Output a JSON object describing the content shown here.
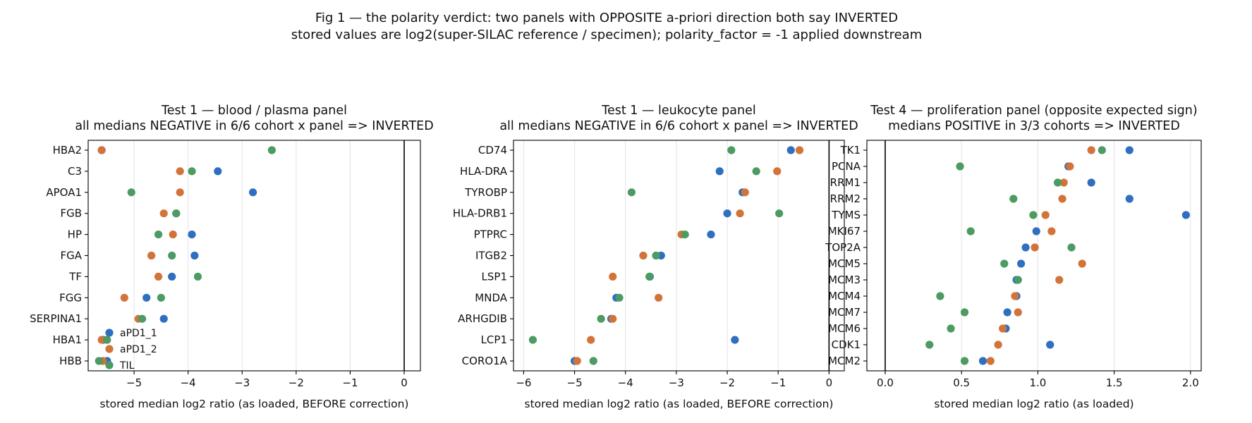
{
  "title_line1": "Fig 1 — the polarity verdict: two panels with OPPOSITE a-priori direction both say INVERTED",
  "title_line2": "stored values are log2(super-SILAC reference / specimen); polarity_factor = -1 applied downstream",
  "colors": {
    "aPD1_1": "#2f6fbf",
    "aPD1_2": "#d2743a",
    "TIL": "#4c9b63"
  },
  "chart_data": [
    {
      "type": "scatter",
      "title_line1": "Test 1 — blood / plasma panel",
      "title_line2": "all medians NEGATIVE in 6/6 cohort x panel  =>  INVERTED",
      "xlabel": "stored median log2 ratio (as loaded, BEFORE correction)",
      "xlim": [
        -5.85,
        0.3
      ],
      "xticks": [
        -5,
        -4,
        -3,
        -2,
        -1,
        0
      ],
      "xtick_labels": [
        "−5",
        "−4",
        "−3",
        "−2",
        "−1",
        "0"
      ],
      "grid": true,
      "legend": {
        "placement": "lower-left",
        "entries": [
          "aPD1_1",
          "aPD1_2",
          "TIL"
        ]
      },
      "categories": [
        "HBA2",
        "C3",
        "APOA1",
        "FGB",
        "HP",
        "FGA",
        "TF",
        "FGG",
        "SERPINA1",
        "HBA1",
        "HBB"
      ],
      "series": [
        {
          "name": "aPD1_1",
          "values": [
            -5.6,
            -3.45,
            -2.8,
            -4.22,
            -3.93,
            -3.88,
            -4.3,
            -4.77,
            -4.45,
            -5.57,
            -5.5
          ]
        },
        {
          "name": "aPD1_2",
          "values": [
            -5.6,
            -4.15,
            -4.15,
            -4.45,
            -4.28,
            -4.68,
            -4.55,
            -5.18,
            -4.92,
            -5.6,
            -5.58
          ]
        },
        {
          "name": "TIL",
          "values": [
            -2.45,
            -3.93,
            -5.05,
            -4.22,
            -4.55,
            -4.3,
            -3.82,
            -4.5,
            -4.85,
            -5.5,
            -5.65
          ]
        }
      ]
    },
    {
      "type": "scatter",
      "title_line1": "Test 1 — leukocyte panel",
      "title_line2": "all medians NEGATIVE in 6/6 cohort x panel  =>  INVERTED",
      "xlabel": "stored median log2 ratio (as loaded, BEFORE correction)",
      "xlim": [
        -6.2,
        0.3
      ],
      "xticks": [
        -6,
        -5,
        -4,
        -3,
        -2,
        -1,
        0
      ],
      "xtick_labels": [
        "−6",
        "−5",
        "−4",
        "−3",
        "−2",
        "−1",
        "0"
      ],
      "grid": true,
      "categories": [
        "CD74",
        "HLA-DRA",
        "TYROBP",
        "HLA-DRB1",
        "PTPRC",
        "ITGB2",
        "LSP1",
        "MNDA",
        "ARHGDIB",
        "LCP1",
        "CORO1A"
      ],
      "series": [
        {
          "name": "aPD1_1",
          "values": [
            -0.75,
            -2.15,
            -1.7,
            -2.0,
            -2.32,
            -3.3,
            -3.52,
            -4.18,
            -4.28,
            -1.85,
            -5.0
          ]
        },
        {
          "name": "aPD1_2",
          "values": [
            -0.58,
            -1.02,
            -1.65,
            -1.75,
            -2.9,
            -3.65,
            -4.25,
            -3.35,
            -4.25,
            -4.68,
            -4.95
          ]
        },
        {
          "name": "TIL",
          "values": [
            -1.92,
            -1.43,
            -3.88,
            -0.98,
            -2.83,
            -3.4,
            -3.53,
            -4.12,
            -4.48,
            -5.82,
            -4.63
          ]
        }
      ]
    },
    {
      "type": "scatter",
      "title_line1": "Test 4 — proliferation panel (opposite expected sign)",
      "title_line2": "medians POSITIVE in 3/3 cohorts  =>  INVERTED",
      "xlabel": "stored median log2 ratio (as loaded)",
      "xlim": [
        -0.12,
        2.07
      ],
      "xticks": [
        0.0,
        0.5,
        1.0,
        1.5,
        2.0
      ],
      "xtick_labels": [
        "0.0",
        "0.5",
        "1.0",
        "1.5",
        "2.0"
      ],
      "grid": true,
      "categories": [
        "TK1",
        "PCNA",
        "RRM1",
        "RRM2",
        "TYMS",
        "MKI67",
        "TOP2A",
        "MCM5",
        "MCM3",
        "MCM4",
        "MCM7",
        "MCM6",
        "CDK1",
        "MCM2"
      ],
      "series": [
        {
          "name": "aPD1_1",
          "values": [
            1.6,
            1.2,
            1.35,
            1.6,
            1.97,
            0.99,
            0.92,
            0.89,
            0.86,
            0.86,
            0.8,
            0.79,
            1.08,
            0.64
          ]
        },
        {
          "name": "aPD1_2",
          "values": [
            1.35,
            1.21,
            1.17,
            1.16,
            1.05,
            1.09,
            0.98,
            1.29,
            1.14,
            0.85,
            0.87,
            0.77,
            0.74,
            0.69
          ]
        },
        {
          "name": "TIL",
          "values": [
            1.42,
            0.49,
            1.13,
            0.84,
            0.97,
            0.56,
            1.22,
            0.78,
            0.87,
            0.36,
            0.52,
            0.43,
            0.29,
            0.52
          ]
        }
      ]
    }
  ]
}
